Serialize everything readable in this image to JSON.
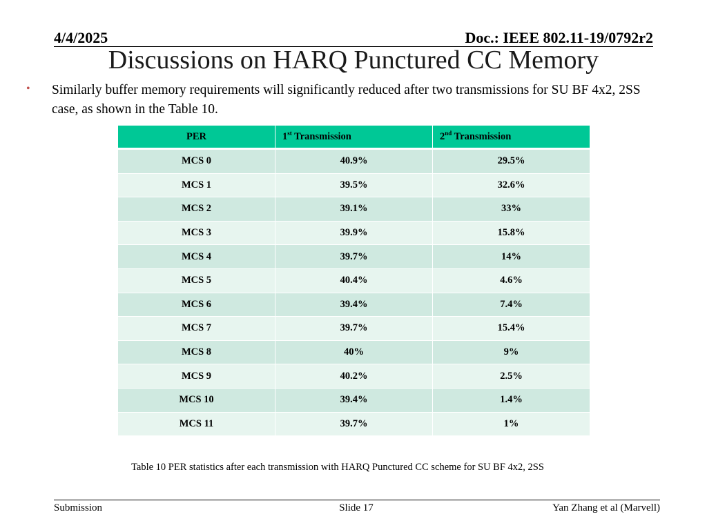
{
  "header": {
    "date": "4/4/2025",
    "doc_id": "Doc.: IEEE 802.11-19/0792r2"
  },
  "title": "Discussions on HARQ Punctured CC Memory",
  "bullet": {
    "marker": "•",
    "text": "Similarly buffer memory requirements will significantly reduced after two transmissions for SU BF 4x2, 2SS case, as shown in the Table 10."
  },
  "table": {
    "headers": [
      {
        "main": "PER",
        "sup": "",
        "rest": ""
      },
      {
        "main": "1",
        "sup": "st",
        "rest": " Transmission"
      },
      {
        "main": "2",
        "sup": "nd",
        "rest": " Transmission"
      }
    ],
    "rows": [
      [
        "MCS 0",
        "40.9%",
        "29.5%"
      ],
      [
        "MCS 1",
        "39.5%",
        "32.6%"
      ],
      [
        "MCS 2",
        "39.1%",
        "33%"
      ],
      [
        "MCS 3",
        "39.9%",
        "15.8%"
      ],
      [
        "MCS 4",
        "39.7%",
        "14%"
      ],
      [
        "MCS 5",
        "40.4%",
        "4.6%"
      ],
      [
        "MCS 6",
        "39.4%",
        "7.4%"
      ],
      [
        "MCS 7",
        "39.7%",
        "15.4%"
      ],
      [
        "MCS 8",
        "40%",
        "9%"
      ],
      [
        "MCS 9",
        "40.2%",
        "2.5%"
      ],
      [
        "MCS 10",
        "39.4%",
        "1.4%"
      ],
      [
        "MCS 11",
        "39.7%",
        "1%"
      ]
    ],
    "caption": "Table 10 PER statistics after each transmission with HARQ Punctured CC scheme for SU BF 4x2, 2SS",
    "colors": {
      "header": "#00c896",
      "row_odd": "#cfe9e0",
      "row_even": "#e7f5ef"
    }
  },
  "footer": {
    "left": "Submission",
    "center": "Slide 17",
    "right": "Yan Zhang et al (Marvell)"
  }
}
